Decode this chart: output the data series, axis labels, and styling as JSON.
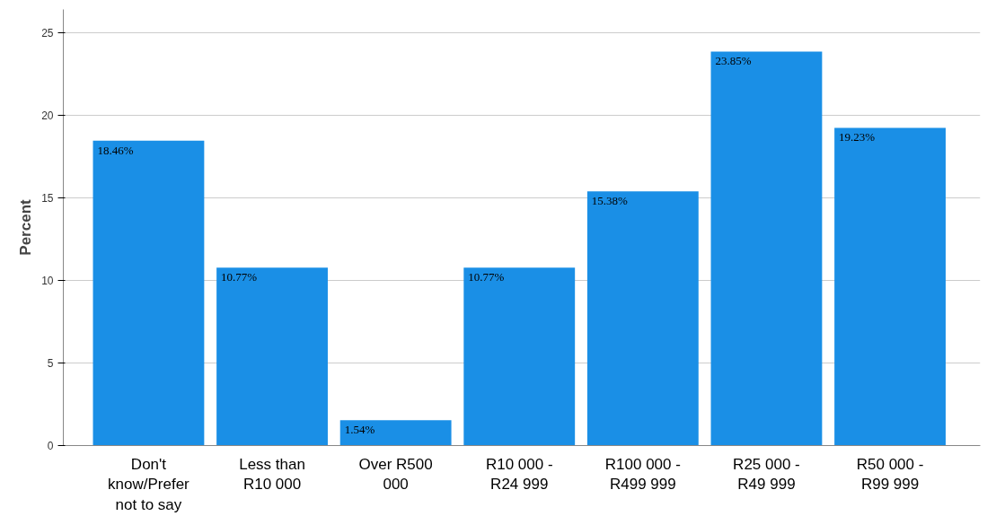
{
  "chart_data": {
    "type": "bar",
    "ylabel": "Percent",
    "categories": [
      "Don't know/Prefer not to say",
      "Less than R10 000",
      "Over R500 000",
      "R10 000 - R24 999",
      "R100 000 - R499 999",
      "R25 000 - R49 999",
      "R50 000 - R99 999"
    ],
    "values": [
      18.46,
      10.77,
      1.54,
      10.77,
      15.38,
      23.85,
      19.23
    ],
    "value_labels": [
      "18.46%",
      "10.77%",
      "1.54%",
      "10.77%",
      "15.38%",
      "23.85%",
      "19.23%"
    ],
    "color": "#1a8fe6",
    "ylim": [
      0,
      26.4
    ],
    "yticks": [
      0,
      5,
      10,
      15,
      20,
      25
    ],
    "grid": "y"
  }
}
